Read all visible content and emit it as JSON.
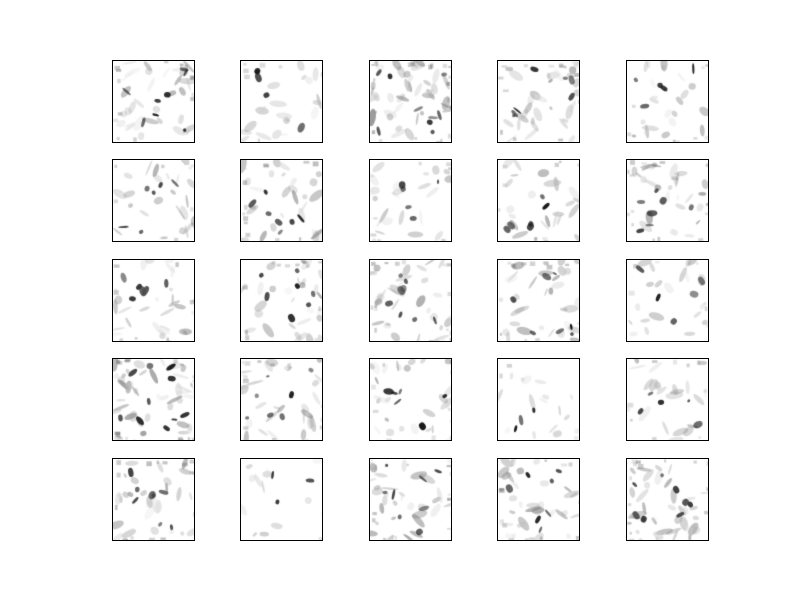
{
  "figure": {
    "type": "image-grid",
    "rows": 5,
    "columns": 5,
    "colormap": "grayscale-inverted",
    "background": "#ffffff",
    "frame_color": "#000000",
    "tile_count": 25,
    "tiles": [
      {
        "row": 1,
        "col": 1,
        "density": 0.55,
        "seed": 11
      },
      {
        "row": 1,
        "col": 2,
        "density": 0.25,
        "seed": 12
      },
      {
        "row": 1,
        "col": 3,
        "density": 0.7,
        "seed": 13
      },
      {
        "row": 1,
        "col": 4,
        "density": 0.5,
        "seed": 14
      },
      {
        "row": 1,
        "col": 5,
        "density": 0.3,
        "seed": 15
      },
      {
        "row": 2,
        "col": 1,
        "density": 0.35,
        "seed": 21
      },
      {
        "row": 2,
        "col": 2,
        "density": 0.45,
        "seed": 22
      },
      {
        "row": 2,
        "col": 3,
        "density": 0.3,
        "seed": 23
      },
      {
        "row": 2,
        "col": 4,
        "density": 0.35,
        "seed": 24
      },
      {
        "row": 2,
        "col": 5,
        "density": 0.45,
        "seed": 25
      },
      {
        "row": 3,
        "col": 1,
        "density": 0.35,
        "seed": 31
      },
      {
        "row": 3,
        "col": 2,
        "density": 0.45,
        "seed": 32
      },
      {
        "row": 3,
        "col": 3,
        "density": 0.55,
        "seed": 33
      },
      {
        "row": 3,
        "col": 4,
        "density": 0.5,
        "seed": 34
      },
      {
        "row": 3,
        "col": 5,
        "density": 0.25,
        "seed": 35
      },
      {
        "row": 4,
        "col": 1,
        "density": 0.75,
        "seed": 41
      },
      {
        "row": 4,
        "col": 2,
        "density": 0.45,
        "seed": 42
      },
      {
        "row": 4,
        "col": 3,
        "density": 0.4,
        "seed": 43
      },
      {
        "row": 4,
        "col": 4,
        "density": 0.12,
        "seed": 44
      },
      {
        "row": 4,
        "col": 5,
        "density": 0.3,
        "seed": 45
      },
      {
        "row": 5,
        "col": 1,
        "density": 0.55,
        "seed": 51
      },
      {
        "row": 5,
        "col": 2,
        "density": 0.06,
        "seed": 52
      },
      {
        "row": 5,
        "col": 3,
        "density": 0.55,
        "seed": 53
      },
      {
        "row": 5,
        "col": 4,
        "density": 0.5,
        "seed": 54
      },
      {
        "row": 5,
        "col": 5,
        "density": 0.6,
        "seed": 55
      }
    ]
  }
}
